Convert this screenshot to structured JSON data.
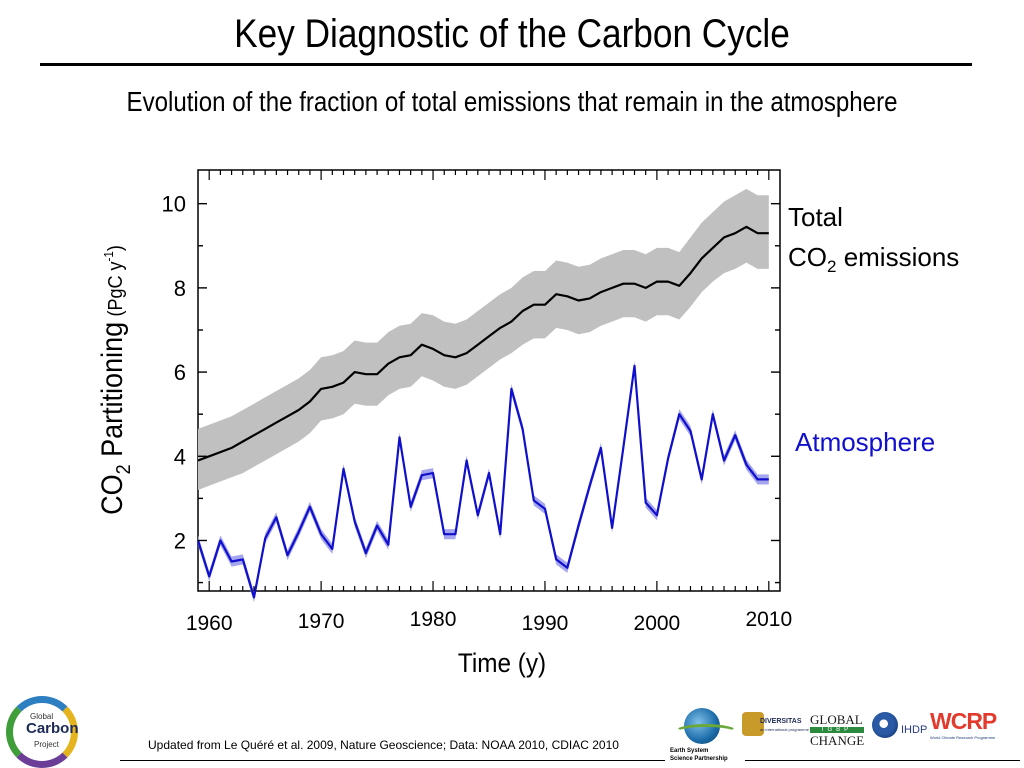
{
  "slide": {
    "title": "Key Diagnostic of the Carbon Cycle",
    "subtitle": "Evolution of the fraction of total emissions that remain in the atmosphere",
    "credit": "Updated from Le Quéré et al. 2009, Nature Geoscience; Data: NOAA 2010, CDIAC 2010"
  },
  "logos": {
    "gcp": {
      "line1": "Global",
      "line2": "Carbon",
      "line3": "Project"
    },
    "essp": {
      "line1": "Earth System",
      "line2": "Science Partnership"
    },
    "diversitas": {
      "word": "DIVERSITAS",
      "sub": "an international programme of biodiversity science"
    },
    "igbp": {
      "line1": "GLOBAL",
      "mid": "IGBP",
      "line2": "CHANGE"
    },
    "ihdp": {
      "word": "IHDP"
    },
    "wcrp": {
      "word": "WCRP",
      "sub": "World Climate Research Programme"
    }
  },
  "chart_data": {
    "type": "line",
    "title": "",
    "xlabel": "Time (y)",
    "ylabel_main": "CO",
    "ylabel_sub": "2",
    "ylabel_rest": " Partitioning",
    "ylabel_unit_open": "(PgC y",
    "ylabel_unit_sup": "-1",
    "ylabel_unit_close": ")",
    "xlim": [
      1959,
      2011
    ],
    "ylim": [
      0.8,
      10.8
    ],
    "x_tick_labels": [
      "1960",
      "1970",
      "1980",
      "1990",
      "2000",
      "2010"
    ],
    "y_tick_labels": [
      "2",
      "4",
      "6",
      "8",
      "10"
    ],
    "grid": false,
    "colors": {
      "total_line": "#000000",
      "total_band": "#c0c0c0",
      "atmos_line": "#1010cc",
      "atmos_band": "#a6a6ee",
      "atmos_label": "#1010cc"
    },
    "series": [
      {
        "name_line1": "Total",
        "name_line2_main": "CO",
        "name_line2_sub": "2",
        "name_line2_rest": " emissions",
        "x": [
          1959,
          1960,
          1961,
          1962,
          1963,
          1964,
          1965,
          1966,
          1967,
          1968,
          1969,
          1970,
          1971,
          1972,
          1973,
          1974,
          1975,
          1976,
          1977,
          1978,
          1979,
          1980,
          1981,
          1982,
          1983,
          1984,
          1985,
          1986,
          1987,
          1988,
          1989,
          1990,
          1991,
          1992,
          1993,
          1994,
          1995,
          1996,
          1997,
          1998,
          1999,
          2000,
          2001,
          2002,
          2003,
          2004,
          2005,
          2006,
          2007,
          2008,
          2009,
          2010
        ],
        "y": [
          3.9,
          4.0,
          4.1,
          4.2,
          4.35,
          4.5,
          4.65,
          4.8,
          4.95,
          5.1,
          5.3,
          5.6,
          5.65,
          5.75,
          6.0,
          5.95,
          5.95,
          6.2,
          6.35,
          6.4,
          6.65,
          6.55,
          6.4,
          6.35,
          6.45,
          6.65,
          6.85,
          7.05,
          7.2,
          7.45,
          7.6,
          7.6,
          7.85,
          7.8,
          7.7,
          7.75,
          7.9,
          8.0,
          8.1,
          8.1,
          8.0,
          8.15,
          8.15,
          8.05,
          8.35,
          8.7,
          8.95,
          9.2,
          9.3,
          9.45,
          9.3,
          9.3
        ],
        "band_upper": [
          4.65,
          4.75,
          4.85,
          4.95,
          5.1,
          5.25,
          5.4,
          5.55,
          5.7,
          5.85,
          6.05,
          6.35,
          6.4,
          6.5,
          6.75,
          6.7,
          6.7,
          6.95,
          7.1,
          7.15,
          7.4,
          7.35,
          7.2,
          7.15,
          7.25,
          7.45,
          7.65,
          7.85,
          8.0,
          8.25,
          8.4,
          8.4,
          8.65,
          8.6,
          8.5,
          8.55,
          8.7,
          8.8,
          8.9,
          8.9,
          8.8,
          8.95,
          8.95,
          8.85,
          9.2,
          9.55,
          9.8,
          10.05,
          10.2,
          10.35,
          10.2,
          10.2
        ],
        "band_lower": [
          3.2,
          3.3,
          3.4,
          3.5,
          3.6,
          3.75,
          3.9,
          4.05,
          4.2,
          4.35,
          4.55,
          4.85,
          4.9,
          5.0,
          5.25,
          5.2,
          5.2,
          5.45,
          5.6,
          5.65,
          5.9,
          5.8,
          5.65,
          5.6,
          5.7,
          5.9,
          6.1,
          6.3,
          6.45,
          6.65,
          6.8,
          6.8,
          7.05,
          7.0,
          6.9,
          6.95,
          7.1,
          7.2,
          7.3,
          7.3,
          7.2,
          7.35,
          7.35,
          7.25,
          7.55,
          7.9,
          8.15,
          8.35,
          8.45,
          8.6,
          8.45,
          8.45
        ]
      },
      {
        "name": "Atmosphere",
        "x": [
          1959,
          1960,
          1961,
          1962,
          1963,
          1964,
          1965,
          1966,
          1967,
          1968,
          1969,
          1970,
          1971,
          1972,
          1973,
          1974,
          1975,
          1976,
          1977,
          1978,
          1979,
          1980,
          1981,
          1982,
          1983,
          1984,
          1985,
          1986,
          1987,
          1988,
          1989,
          1990,
          1991,
          1992,
          1993,
          1994,
          1995,
          1996,
          1997,
          1998,
          1999,
          2000,
          2001,
          2002,
          2003,
          2004,
          2005,
          2006,
          2007,
          2008,
          2009,
          2010
        ],
        "y": [
          2.0,
          1.15,
          2.0,
          1.5,
          1.55,
          0.65,
          2.05,
          2.55,
          1.65,
          2.2,
          2.8,
          2.15,
          1.8,
          3.7,
          2.45,
          1.7,
          2.35,
          1.9,
          4.45,
          2.8,
          3.55,
          3.6,
          2.15,
          2.15,
          3.9,
          2.6,
          3.6,
          2.15,
          5.6,
          4.65,
          2.95,
          2.75,
          1.55,
          1.35,
          2.35,
          3.3,
          4.2,
          2.3,
          4.2,
          6.15,
          2.9,
          2.6,
          3.95,
          5.0,
          4.6,
          3.45,
          5.0,
          3.9,
          4.5,
          3.8,
          3.45,
          3.45
        ],
        "band_half_width": 0.12
      }
    ]
  }
}
